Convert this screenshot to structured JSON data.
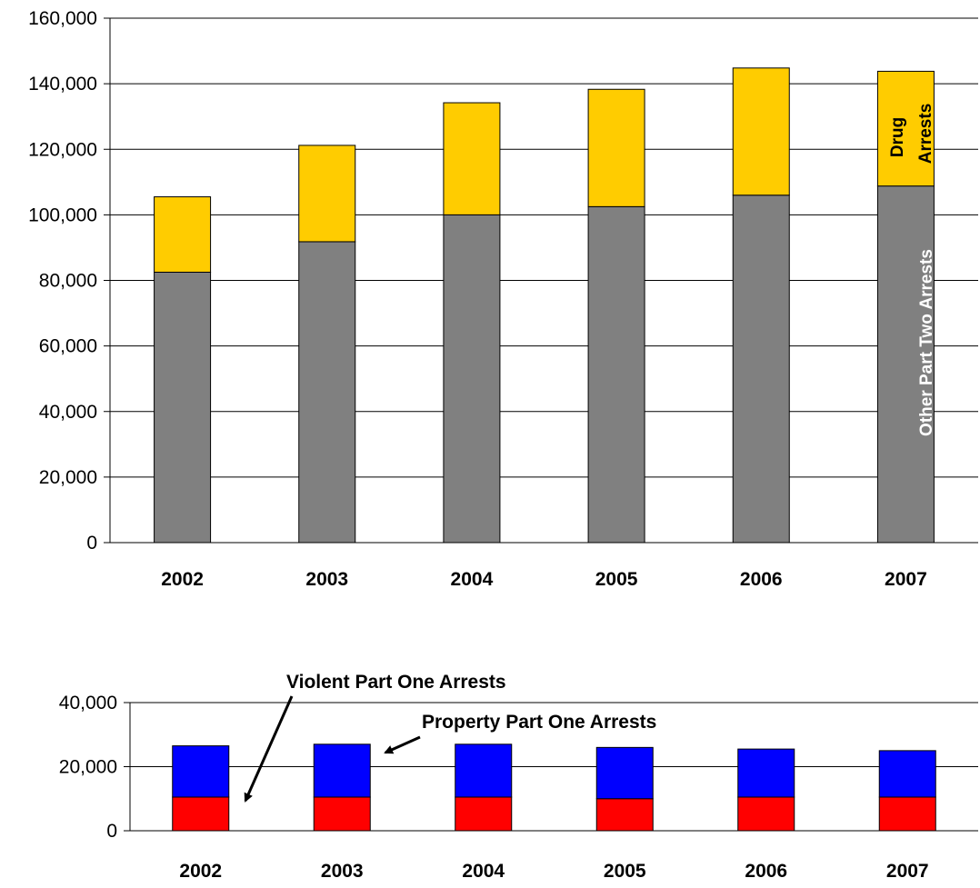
{
  "chart_data": [
    {
      "type": "bar",
      "stacked": true,
      "categories": [
        "2002",
        "2003",
        "2004",
        "2005",
        "2006",
        "2007"
      ],
      "series": [
        {
          "name": "Other Part Two Arrests",
          "color": "#808080",
          "values": [
            82500,
            91800,
            100000,
            102500,
            106000,
            108800
          ]
        },
        {
          "name": "Drug Arrests",
          "color": "#ffcc00",
          "values": [
            23000,
            29400,
            34200,
            35800,
            38800,
            35000
          ]
        }
      ],
      "ylim": [
        0,
        160000
      ],
      "yticks": [
        "0",
        "20,000",
        "40,000",
        "60,000",
        "80,000",
        "100,000",
        "120,000",
        "140,000",
        "160,000"
      ],
      "ytick_values": [
        0,
        20000,
        40000,
        60000,
        80000,
        100000,
        120000,
        140000,
        160000
      ],
      "grid": true,
      "in_bar_labels": {
        "drug_line1": "Drug",
        "drug_line2": "Arrests",
        "other": "Other Part Two Arrests"
      }
    },
    {
      "type": "bar",
      "stacked": true,
      "categories": [
        "2002",
        "2003",
        "2004",
        "2005",
        "2006",
        "2007"
      ],
      "series": [
        {
          "name": "Violent Part One Arrests",
          "color": "#ff0000",
          "values": [
            10500,
            10500,
            10500,
            10000,
            10500,
            10500
          ]
        },
        {
          "name": "Property Part One Arrests",
          "color": "#0000ff",
          "values": [
            16000,
            16500,
            16500,
            16000,
            15000,
            14500
          ]
        }
      ],
      "ylim": [
        0,
        40000
      ],
      "yticks": [
        "0",
        "20,000",
        "40,000"
      ],
      "ytick_values": [
        0,
        20000,
        40000
      ],
      "grid": true,
      "annotations": {
        "violent": "Violent Part One Arrests",
        "property": "Property Part One Arrests"
      }
    }
  ]
}
